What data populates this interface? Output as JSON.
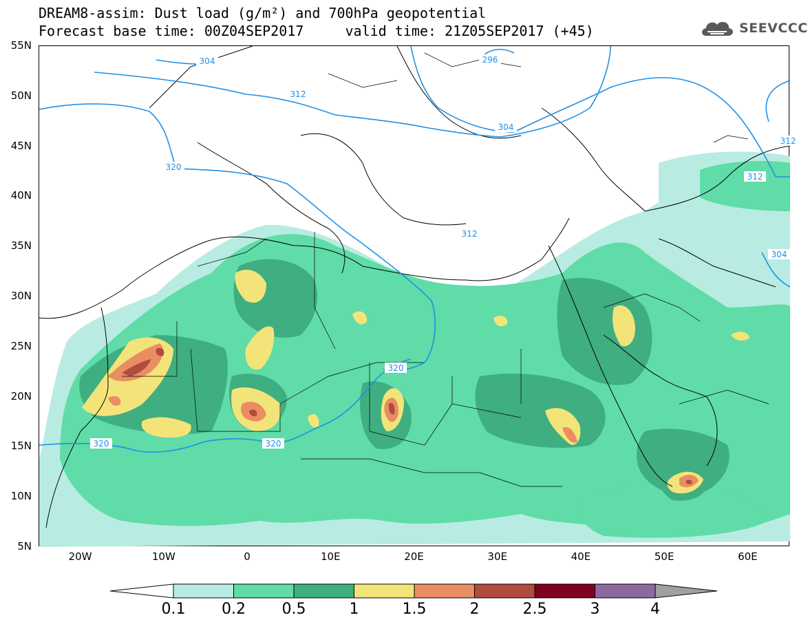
{
  "header": {
    "title_line1": "DREAM8-assim: Dust load (g/m²) and 700hPa geopotential",
    "title_line2": "Forecast base time: 00Z04SEP2017     valid time: 21Z05SEP2017 (+45)"
  },
  "logo": {
    "text": "SEEVCCC",
    "icon": "cloud-icon"
  },
  "map": {
    "lon_range": [
      -25,
      65
    ],
    "lat_range": [
      5,
      55
    ],
    "lat_ticks": [
      "55N",
      "50N",
      "45N",
      "40N",
      "35N",
      "30N",
      "25N",
      "20N",
      "15N",
      "10N",
      "5N"
    ],
    "lon_ticks": [
      "20W",
      "10W",
      "0",
      "10E",
      "20E",
      "30E",
      "40E",
      "50E",
      "60E"
    ],
    "contour_labels": [
      "304",
      "312",
      "320",
      "296",
      "304",
      "312",
      "312",
      "304",
      "312",
      "320",
      "320",
      "320"
    ],
    "colors": {
      "land_outline": "#000000",
      "contour": "#1e90e6",
      "dust_0_1": "#b8ece2",
      "dust_0_2": "#5fdca8",
      "dust_0_5": "#3fae80",
      "dust_1": "#f3e47a",
      "dust_1_5": "#e98d63",
      "dust_2": "#b04c3e"
    }
  },
  "legend": {
    "colors": [
      "#b8ece2",
      "#5fdca8",
      "#3fae80",
      "#f3e47a",
      "#e98d63",
      "#b04c3e",
      "#800020",
      "#8c6aa0",
      "#a0a0a0"
    ],
    "labels": [
      "0.1",
      "0.2",
      "0.5",
      "1",
      "1.5",
      "2",
      "2.5",
      "3",
      "4"
    ]
  }
}
